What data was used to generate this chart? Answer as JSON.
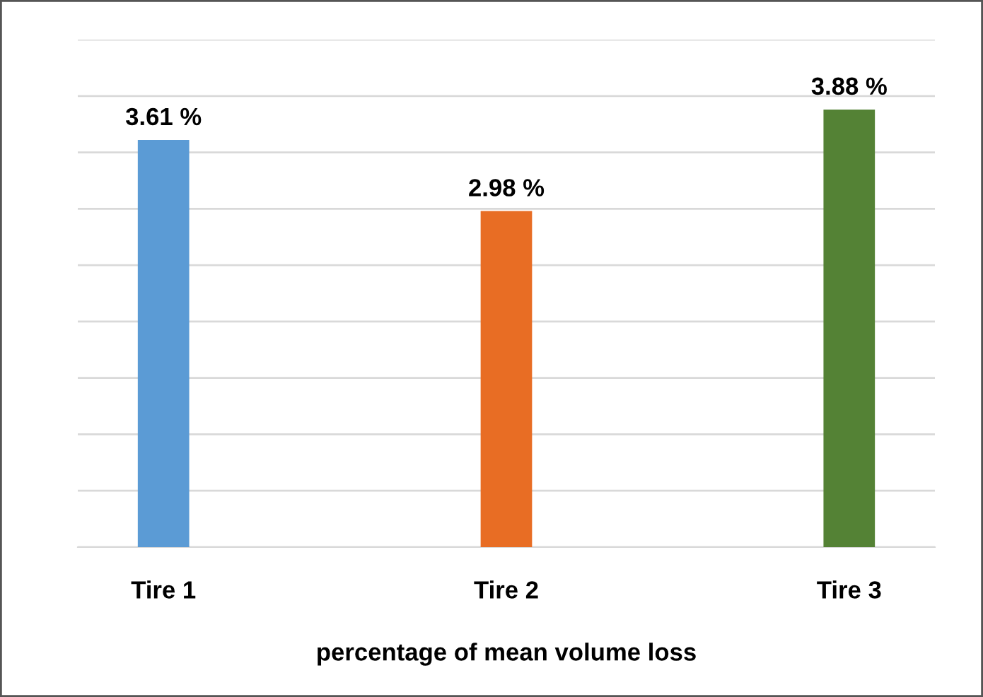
{
  "chart_data": {
    "type": "bar",
    "categories": [
      "Tire 1",
      "Tire 2",
      "Tire 3"
    ],
    "values": [
      3.61,
      2.98,
      3.88
    ],
    "colors": [
      "#5b9bd5",
      "#e86d24",
      "#548235"
    ],
    "value_labels": [
      "3.61 %",
      "2.98 %",
      "3.88 %"
    ],
    "xlabel": "percentage of mean volume loss",
    "ylim": [
      0,
      4.5
    ],
    "yticks": [
      {
        "value": 0,
        "label": null
      },
      {
        "value": 0.5,
        "label": null
      },
      {
        "value": 1,
        "label": null
      },
      {
        "value": 1.5,
        "label": null
      },
      {
        "value": 2,
        "label": null
      },
      {
        "value": 2.5,
        "label": null
      },
      {
        "value": 3,
        "label": null
      },
      {
        "value": 3.5,
        "label": null
      },
      {
        "value": 4,
        "label": null
      },
      {
        "value": 4.5,
        "label": null
      }
    ],
    "grid": "y",
    "tick_labels": "x"
  }
}
